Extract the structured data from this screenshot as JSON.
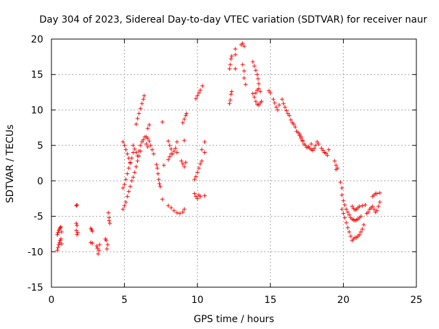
{
  "chart_data": {
    "type": "scatter",
    "title": "Day 304 of 2023, Sidereal Day-to-day VTEC variation (SDTVAR) for receiver naur",
    "xlabel": "GPS time / hours",
    "ylabel": "SDTVAR / TECUs",
    "xlim": [
      0,
      25
    ],
    "ylim": [
      -15,
      20
    ],
    "xticks": [
      0,
      5,
      10,
      15,
      20,
      25
    ],
    "yticks": [
      -15,
      -10,
      -5,
      0,
      5,
      10,
      15,
      20
    ],
    "grid": true,
    "marker": "+",
    "series": [
      {
        "name": "SDTVAR",
        "color": "#ff0000",
        "points": [
          [
            0.4,
            -9.8
          ],
          [
            0.45,
            -9.4
          ],
          [
            0.5,
            -9.0
          ],
          [
            0.55,
            -8.7
          ],
          [
            0.6,
            -8.4
          ],
          [
            0.65,
            -8.2
          ],
          [
            0.7,
            -8.9
          ],
          [
            0.4,
            -7.6
          ],
          [
            0.45,
            -7.3
          ],
          [
            0.5,
            -7.0
          ],
          [
            0.55,
            -6.8
          ],
          [
            0.6,
            -6.6
          ],
          [
            0.65,
            -6.5
          ],
          [
            0.7,
            -7.2
          ],
          [
            1.7,
            -3.5
          ],
          [
            1.75,
            -3.4
          ],
          [
            1.7,
            -6.0
          ],
          [
            1.75,
            -6.3
          ],
          [
            1.7,
            -7.0
          ],
          [
            1.75,
            -7.6
          ],
          [
            1.8,
            -7.3
          ],
          [
            2.7,
            -6.7
          ],
          [
            2.75,
            -6.9
          ],
          [
            2.8,
            -7.1
          ],
          [
            2.7,
            -8.7
          ],
          [
            2.8,
            -8.8
          ],
          [
            3.1,
            -9.2
          ],
          [
            3.15,
            -9.5
          ],
          [
            3.2,
            -10.3
          ],
          [
            3.25,
            -9.8
          ],
          [
            3.3,
            -9.0
          ],
          [
            3.7,
            -8.2
          ],
          [
            3.75,
            -8.4
          ],
          [
            3.8,
            -9.6
          ],
          [
            3.85,
            -9.0
          ],
          [
            3.9,
            -4.5
          ],
          [
            3.95,
            -5.2
          ],
          [
            4.0,
            -6.0
          ],
          [
            3.95,
            -5.6
          ],
          [
            4.9,
            -4.0
          ],
          [
            5.0,
            -3.5
          ],
          [
            5.1,
            -3.0
          ],
          [
            5.2,
            -2.2
          ],
          [
            5.3,
            -1.5
          ],
          [
            5.4,
            -0.8
          ],
          [
            5.5,
            0.0
          ],
          [
            4.9,
            -1.0
          ],
          [
            5.0,
            -0.5
          ],
          [
            5.1,
            0.2
          ],
          [
            5.2,
            1.0
          ],
          [
            5.3,
            1.8
          ],
          [
            5.4,
            2.5
          ],
          [
            5.5,
            3.2
          ],
          [
            5.6,
            4.0
          ],
          [
            4.9,
            5.5
          ],
          [
            5.0,
            5.0
          ],
          [
            5.1,
            4.4
          ],
          [
            5.2,
            3.8
          ],
          [
            5.3,
            3.2
          ],
          [
            5.4,
            2.6
          ],
          [
            5.6,
            5.0
          ],
          [
            5.7,
            4.5
          ],
          [
            5.8,
            4.0
          ],
          [
            5.9,
            3.5
          ],
          [
            6.0,
            4.2
          ],
          [
            6.1,
            5.0
          ],
          [
            6.2,
            5.5
          ],
          [
            5.8,
            8.0
          ],
          [
            5.9,
            8.8
          ],
          [
            6.0,
            9.5
          ],
          [
            6.1,
            10.2
          ],
          [
            6.2,
            10.9
          ],
          [
            6.3,
            11.5
          ],
          [
            6.35,
            12.0
          ],
          [
            5.6,
            0.5
          ],
          [
            5.7,
            1.2
          ],
          [
            5.8,
            2.0
          ],
          [
            5.9,
            2.8
          ],
          [
            6.0,
            3.5
          ],
          [
            6.1,
            4.2
          ],
          [
            6.3,
            5.8
          ],
          [
            6.4,
            6.2
          ],
          [
            6.5,
            6.2
          ],
          [
            6.6,
            6.0
          ],
          [
            6.7,
            5.6
          ],
          [
            6.8,
            5.0
          ],
          [
            6.9,
            4.4
          ],
          [
            7.0,
            3.8
          ],
          [
            6.6,
            7.4
          ],
          [
            6.7,
            7.9
          ],
          [
            6.5,
            5.2
          ],
          [
            6.6,
            4.8
          ],
          [
            7.2,
            2.3
          ],
          [
            7.25,
            1.8
          ],
          [
            7.3,
            1.0
          ],
          [
            7.35,
            0.2
          ],
          [
            7.4,
            -0.4
          ],
          [
            7.45,
            -0.8
          ],
          [
            7.6,
            8.3
          ],
          [
            7.6,
            -2.6
          ],
          [
            7.7,
            2.2
          ],
          [
            8.0,
            5.6
          ],
          [
            8.1,
            5.0
          ],
          [
            8.2,
            4.5
          ],
          [
            8.3,
            3.8
          ],
          [
            8.4,
            4.2
          ],
          [
            8.5,
            4.6
          ],
          [
            8.6,
            4.0
          ],
          [
            8.0,
            3.0
          ],
          [
            8.1,
            3.4
          ],
          [
            8.2,
            3.8
          ],
          [
            8.6,
            5.5
          ],
          [
            8.0,
            -3.5
          ],
          [
            8.2,
            -3.8
          ],
          [
            8.4,
            -4.2
          ],
          [
            8.6,
            -4.5
          ],
          [
            8.8,
            -4.6
          ],
          [
            9.0,
            -4.4
          ],
          [
            9.1,
            -4.0
          ],
          [
            8.9,
            2.8
          ],
          [
            9.0,
            2.4
          ],
          [
            9.1,
            2.0
          ],
          [
            9.2,
            2.6
          ],
          [
            9.0,
            8.2
          ],
          [
            9.1,
            8.7
          ],
          [
            9.2,
            9.2
          ],
          [
            9.25,
            9.5
          ],
          [
            9.1,
            5.7
          ],
          [
            9.8,
            -1.8
          ],
          [
            9.9,
            -2.2
          ],
          [
            10.0,
            -2.5
          ],
          [
            10.1,
            -2.0
          ],
          [
            10.2,
            -2.2
          ],
          [
            10.5,
            -2.1
          ],
          [
            9.8,
            0.2
          ],
          [
            9.9,
            0.6
          ],
          [
            10.0,
            1.2
          ],
          [
            10.1,
            1.8
          ],
          [
            10.2,
            2.4
          ],
          [
            10.3,
            2.8
          ],
          [
            9.9,
            11.6
          ],
          [
            10.0,
            12.0
          ],
          [
            10.1,
            12.4
          ],
          [
            10.2,
            12.8
          ],
          [
            10.35,
            13.4
          ],
          [
            10.3,
            4.4
          ],
          [
            10.5,
            4.0
          ],
          [
            10.5,
            5.5
          ],
          [
            12.2,
            10.9
          ],
          [
            12.25,
            11.4
          ],
          [
            12.3,
            12.2
          ],
          [
            12.35,
            12.6
          ],
          [
            12.2,
            15.8
          ],
          [
            12.25,
            16.4
          ],
          [
            12.3,
            17.2
          ],
          [
            12.35,
            17.6
          ],
          [
            12.6,
            18.6
          ],
          [
            12.6,
            17.8
          ],
          [
            12.6,
            15.8
          ],
          [
            13.0,
            19.2
          ],
          [
            13.1,
            19.4
          ],
          [
            13.2,
            19.0
          ],
          [
            13.1,
            16.4
          ],
          [
            13.2,
            14.5
          ],
          [
            13.3,
            13.6
          ],
          [
            13.2,
            15.5
          ],
          [
            13.8,
            16.8
          ],
          [
            13.9,
            16.2
          ],
          [
            14.0,
            15.6
          ],
          [
            14.1,
            15.0
          ],
          [
            14.15,
            14.4
          ],
          [
            14.2,
            13.7
          ],
          [
            13.8,
            12.3
          ],
          [
            13.9,
            11.8
          ],
          [
            14.0,
            11.2
          ],
          [
            14.1,
            10.8
          ],
          [
            14.2,
            10.7
          ],
          [
            14.3,
            11.0
          ],
          [
            14.4,
            11.2
          ],
          [
            14.0,
            12.4
          ],
          [
            14.1,
            12.8
          ],
          [
            14.2,
            13.0
          ],
          [
            14.3,
            12.6
          ],
          [
            14.9,
            12.7
          ],
          [
            15.0,
            12.4
          ],
          [
            15.2,
            11.5
          ],
          [
            15.3,
            11.0
          ],
          [
            15.4,
            10.4
          ],
          [
            15.5,
            10.0
          ],
          [
            15.6,
            10.7
          ],
          [
            15.8,
            11.5
          ],
          [
            15.9,
            10.9
          ],
          [
            16.0,
            10.4
          ],
          [
            16.1,
            9.9
          ],
          [
            16.2,
            9.5
          ],
          [
            16.3,
            9.2
          ],
          [
            16.4,
            8.6
          ],
          [
            16.5,
            8.2
          ],
          [
            16.6,
            8.0
          ],
          [
            16.7,
            7.6
          ],
          [
            16.8,
            7.0
          ],
          [
            16.9,
            6.8
          ],
          [
            17.0,
            6.4
          ],
          [
            17.1,
            6.0
          ],
          [
            17.2,
            5.7
          ],
          [
            17.0,
            6.6
          ],
          [
            17.1,
            6.2
          ],
          [
            17.2,
            5.6
          ],
          [
            17.3,
            5.2
          ],
          [
            17.4,
            5.0
          ],
          [
            17.5,
            4.7
          ],
          [
            17.6,
            4.8
          ],
          [
            17.8,
            5.2
          ],
          [
            17.6,
            4.8
          ],
          [
            17.7,
            4.6
          ],
          [
            17.8,
            4.4
          ],
          [
            17.9,
            4.3
          ],
          [
            18.0,
            4.6
          ],
          [
            18.1,
            5.0
          ],
          [
            18.2,
            5.5
          ],
          [
            18.3,
            5.2
          ],
          [
            18.5,
            4.6
          ],
          [
            18.6,
            4.3
          ],
          [
            18.7,
            4.0
          ],
          [
            18.8,
            3.9
          ],
          [
            18.9,
            3.6
          ],
          [
            19.0,
            4.4
          ],
          [
            19.4,
            2.8
          ],
          [
            19.5,
            2.2
          ],
          [
            19.5,
            1.6
          ],
          [
            19.6,
            1.8
          ],
          [
            19.8,
            -0.2
          ],
          [
            19.9,
            -1.0
          ],
          [
            19.9,
            -2.0
          ],
          [
            20.0,
            -2.8
          ],
          [
            20.1,
            -3.4
          ],
          [
            20.2,
            -4.0
          ],
          [
            20.3,
            -4.4
          ],
          [
            20.4,
            -4.8
          ],
          [
            20.5,
            -5.2
          ],
          [
            20.6,
            -5.4
          ],
          [
            20.7,
            -5.5
          ],
          [
            20.8,
            -5.6
          ],
          [
            20.9,
            -5.5
          ],
          [
            21.0,
            -5.4
          ],
          [
            21.1,
            -5.2
          ],
          [
            21.2,
            -5.0
          ],
          [
            19.9,
            -4.0
          ],
          [
            20.0,
            -4.6
          ],
          [
            20.1,
            -5.2
          ],
          [
            20.2,
            -5.9
          ],
          [
            20.3,
            -6.6
          ],
          [
            20.4,
            -7.2
          ],
          [
            20.5,
            -7.8
          ],
          [
            20.6,
            -8.4
          ],
          [
            20.7,
            -8.2
          ],
          [
            20.8,
            -8.0
          ],
          [
            20.9,
            -8.0
          ],
          [
            21.0,
            -7.8
          ],
          [
            21.1,
            -7.6
          ],
          [
            21.2,
            -7.2
          ],
          [
            21.3,
            -6.8
          ],
          [
            21.4,
            -6.2
          ],
          [
            20.6,
            -3.6
          ],
          [
            20.7,
            -3.9
          ],
          [
            20.8,
            -4.1
          ],
          [
            20.9,
            -4.0
          ],
          [
            21.0,
            -3.8
          ],
          [
            21.1,
            -3.6
          ],
          [
            21.3,
            -3.5
          ],
          [
            21.5,
            -3.4
          ],
          [
            21.6,
            -4.6
          ],
          [
            21.7,
            -4.4
          ],
          [
            21.8,
            -4.0
          ],
          [
            21.9,
            -3.8
          ],
          [
            22.0,
            -3.6
          ],
          [
            22.1,
            -4.0
          ],
          [
            22.2,
            -4.4
          ],
          [
            22.3,
            -4.2
          ],
          [
            22.4,
            -3.6
          ],
          [
            22.5,
            -3.0
          ],
          [
            22.0,
            -2.2
          ],
          [
            22.1,
            -2.0
          ],
          [
            22.2,
            -1.8
          ],
          [
            22.3,
            -1.8
          ],
          [
            22.5,
            -1.7
          ]
        ]
      }
    ]
  }
}
